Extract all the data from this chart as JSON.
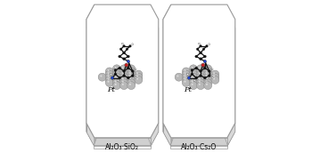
{
  "fig_width": 3.59,
  "fig_height": 1.72,
  "bg_color": "#ffffff",
  "label_left": "Al₂O₃·SiO₂",
  "label_right": "Al₂O₃·Cs₂O",
  "pt_label": "Pt",
  "pt_label_fontsize": 6,
  "label_fontsize": 5.5,
  "sphere_color": "#b8b8b8",
  "sphere_edge": "#888888",
  "oct_edge": "#999999",
  "oct_lw": 0.8
}
